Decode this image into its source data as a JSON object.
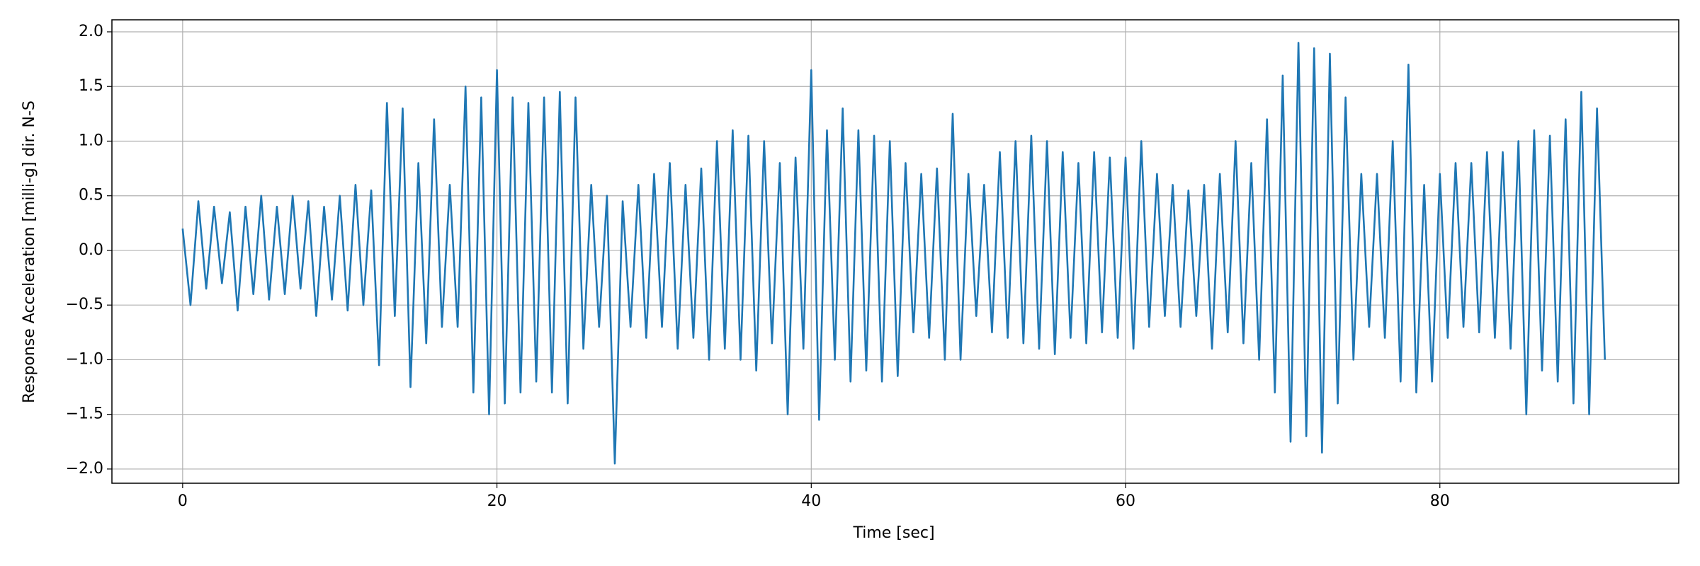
{
  "chart_data": {
    "type": "line",
    "xlabel": "Time [sec]",
    "ylabel": "Response Acceleration [milli-g] dir. N-S",
    "grid": true,
    "xlim": [
      -4.5,
      95.2
    ],
    "ylim": [
      -2.13,
      2.11
    ],
    "xticks": [
      0,
      20,
      40,
      60,
      80
    ],
    "yticks": [
      {
        "value": -2.0,
        "label": "−2.0"
      },
      {
        "value": -1.5,
        "label": "−1.5"
      },
      {
        "value": -1.0,
        "label": "−1.0"
      },
      {
        "value": -0.5,
        "label": "−0.5"
      },
      {
        "value": 0.0,
        "label": "0.0"
      },
      {
        "value": 0.5,
        "label": "0.5"
      },
      {
        "value": 1.0,
        "label": "1.0"
      },
      {
        "value": 1.5,
        "label": "1.5"
      },
      {
        "value": 2.0,
        "label": "2.0"
      }
    ],
    "x": [
      0,
      0.5,
      1,
      1.5,
      2,
      2.5,
      3,
      3.5,
      4,
      4.5,
      5,
      5.5,
      6,
      6.5,
      7,
      7.5,
      8,
      8.5,
      9,
      9.5,
      10,
      10.5,
      11,
      11.5,
      12,
      12.5,
      13,
      13.5,
      14,
      14.5,
      15,
      15.5,
      16,
      16.5,
      17,
      17.5,
      18,
      18.5,
      19,
      19.5,
      20,
      20.5,
      21,
      21.5,
      22,
      22.5,
      23,
      23.5,
      24,
      24.5,
      25,
      25.5,
      26,
      26.5,
      27,
      27.5,
      28,
      28.5,
      29,
      29.5,
      30,
      30.5,
      31,
      31.5,
      32,
      32.5,
      33,
      33.5,
      34,
      34.5,
      35,
      35.5,
      36,
      36.5,
      37,
      37.5,
      38,
      38.5,
      39,
      39.5,
      40,
      40.5,
      41,
      41.5,
      42,
      42.5,
      43,
      43.5,
      44,
      44.5,
      45,
      45.5,
      46,
      46.5,
      47,
      47.5,
      48,
      48.5,
      49,
      49.5,
      50,
      50.5,
      51,
      51.5,
      52,
      52.5,
      53,
      53.5,
      54,
      54.5,
      55,
      55.5,
      56,
      56.5,
      57,
      57.5,
      58,
      58.5,
      59,
      59.5,
      60,
      60.5,
      61,
      61.5,
      62,
      62.5,
      63,
      63.5,
      64,
      64.5,
      65,
      65.5,
      66,
      66.5,
      67,
      67.5,
      68,
      68.5,
      69,
      69.5,
      70,
      70.5,
      71,
      71.5,
      72,
      72.5,
      73,
      73.5,
      74,
      74.5,
      75,
      75.5,
      76,
      76.5,
      77,
      77.5,
      78,
      78.5,
      79,
      79.5,
      80,
      80.5,
      81,
      81.5,
      82,
      82.5,
      83,
      83.5,
      84,
      84.5,
      85,
      85.5,
      86,
      86.5,
      87,
      87.5,
      88,
      88.5,
      89,
      89.5,
      90,
      90.5
    ],
    "series": [
      {
        "color": "#1f77b4",
        "values": [
          0.2,
          -0.5,
          0.45,
          -0.35,
          0.4,
          -0.3,
          0.35,
          -0.55,
          0.4,
          -0.4,
          0.5,
          -0.45,
          0.4,
          -0.4,
          0.5,
          -0.35,
          0.45,
          -0.6,
          0.4,
          -0.45,
          0.5,
          -0.55,
          0.6,
          -0.5,
          0.55,
          -1.05,
          1.35,
          -0.6,
          1.3,
          -1.25,
          0.8,
          -0.85,
          1.2,
          -0.7,
          0.6,
          -0.7,
          1.5,
          -1.3,
          1.4,
          -1.5,
          1.65,
          -1.4,
          1.4,
          -1.3,
          1.35,
          -1.2,
          1.4,
          -1.3,
          1.45,
          -1.4,
          1.4,
          -0.9,
          0.6,
          -0.7,
          0.5,
          -1.95,
          0.45,
          -0.7,
          0.6,
          -0.8,
          0.7,
          -0.7,
          0.8,
          -0.9,
          0.6,
          -0.8,
          0.75,
          -1.0,
          1.0,
          -0.9,
          1.1,
          -1.0,
          1.05,
          -1.1,
          1.0,
          -0.85,
          0.8,
          -1.5,
          0.85,
          -0.9,
          1.65,
          -1.55,
          1.1,
          -1.0,
          1.3,
          -1.2,
          1.1,
          -1.1,
          1.05,
          -1.2,
          1.0,
          -1.15,
          0.8,
          -0.75,
          0.7,
          -0.8,
          0.75,
          -1.0,
          1.25,
          -1.0,
          0.7,
          -0.6,
          0.6,
          -0.75,
          0.9,
          -0.8,
          1.0,
          -0.85,
          1.05,
          -0.9,
          1.0,
          -0.95,
          0.9,
          -0.8,
          0.8,
          -0.85,
          0.9,
          -0.75,
          0.85,
          -0.8,
          0.85,
          -0.9,
          1.0,
          -0.7,
          0.7,
          -0.6,
          0.6,
          -0.7,
          0.55,
          -0.6,
          0.6,
          -0.9,
          0.7,
          -0.75,
          1.0,
          -0.85,
          0.8,
          -1.0,
          1.2,
          -1.3,
          1.6,
          -1.75,
          1.9,
          -1.7,
          1.85,
          -1.85,
          1.8,
          -1.4,
          1.4,
          -1.0,
          0.7,
          -0.7,
          0.7,
          -0.8,
          1.0,
          -1.2,
          1.7,
          -1.3,
          0.6,
          -1.2,
          0.7,
          -0.8,
          0.8,
          -0.7,
          0.8,
          -0.75,
          0.9,
          -0.8,
          0.9,
          -0.9,
          1.0,
          -1.5,
          1.1,
          -1.1,
          1.05,
          -1.2,
          1.2,
          -1.4,
          1.45,
          -1.5,
          1.3,
          -1.0
        ]
      }
    ]
  }
}
